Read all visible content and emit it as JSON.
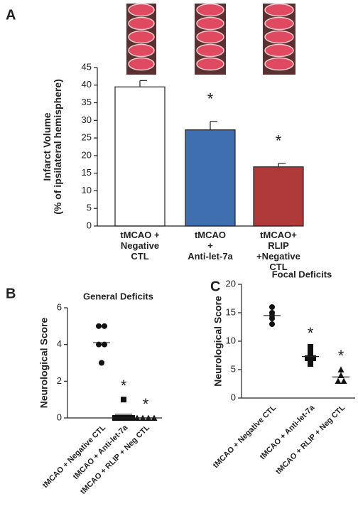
{
  "chart_data": [
    {
      "type": "bar",
      "panel": "A",
      "ylabel": "Infarct Volume\n(% of ipsilateral hemisphere)",
      "categories": [
        "tMCAO +\nNegative\nCTL",
        "tMCAO\n+\nAnti-let-7a",
        "tMCAO+\nRLIP\n+Negative\nCTL"
      ],
      "values": [
        39.5,
        27.3,
        16.8
      ],
      "errors": [
        1.8,
        2.4,
        1.0
      ],
      "colors": [
        "#ffffff",
        "#3f6fae",
        "#b03a3a"
      ],
      "significance": [
        null,
        "*",
        "*"
      ],
      "ylim": [
        0,
        45
      ],
      "yticks": [
        0,
        5,
        10,
        15,
        20,
        25,
        30,
        35,
        40,
        45
      ]
    },
    {
      "type": "scatter",
      "panel": "B",
      "title": "General Deficits",
      "ylabel": "Neurological Score",
      "categories": [
        "tMCAO + Negative CTL",
        "tMCAO + Anti-let-7a",
        "tMCAO + RLIP + Neg CTL"
      ],
      "points": [
        [
          5,
          5,
          4,
          4,
          3
        ],
        [
          1,
          0,
          0,
          0,
          0
        ],
        [
          0,
          0,
          0,
          0
        ]
      ],
      "means": [
        4.1,
        0.2,
        0
      ],
      "markers": [
        "circle",
        "square",
        "triangle"
      ],
      "significance": [
        null,
        "*",
        "*"
      ],
      "ylim": [
        0,
        6
      ],
      "yticks": [
        0,
        2,
        4,
        6
      ]
    },
    {
      "type": "scatter",
      "panel": "C",
      "title": "Focal Deficits",
      "ylabel": "Neurological Score",
      "categories": [
        "tMCAO + Negative CTL",
        "tMCAO + Anti-let-7a",
        "tMCAO + RLIP + Neg CTL"
      ],
      "points": [
        [
          16,
          15,
          14.5,
          14,
          13
        ],
        [
          9,
          8,
          7,
          7,
          6
        ],
        [
          5,
          4,
          3,
          3
        ]
      ],
      "means": [
        14.5,
        7.3,
        3.7
      ],
      "markers": [
        "circle",
        "square",
        "triangle"
      ],
      "significance": [
        null,
        "*",
        "*"
      ],
      "ylim": [
        0,
        20
      ],
      "yticks": [
        0,
        5,
        10,
        15,
        20
      ]
    }
  ]
}
